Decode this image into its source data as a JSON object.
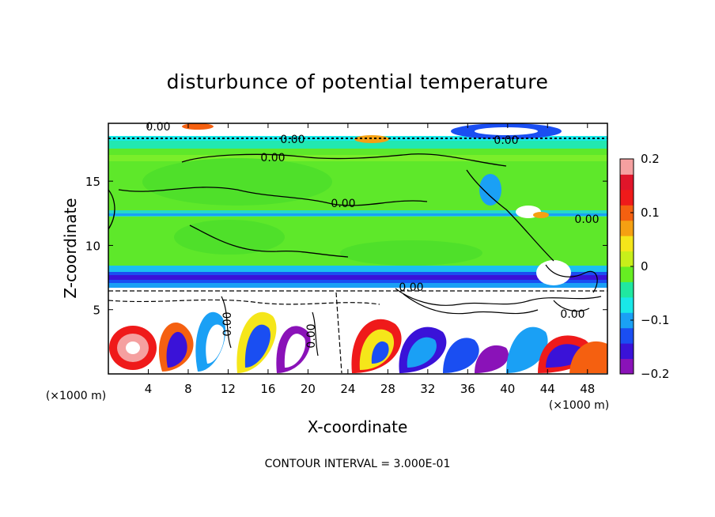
{
  "chart_data": {
    "type": "heatmap",
    "title": "disturbunce of potential temperature",
    "xlabel": "X-coordinate",
    "ylabel": "Z-coordinate",
    "x_unit": "(×1000 m)",
    "y_unit": "(×1000 m)",
    "xlim": [
      0,
      50
    ],
    "ylim": [
      0,
      19.5
    ],
    "x_ticks": [
      4,
      8,
      12,
      16,
      20,
      24,
      28,
      32,
      36,
      40,
      44,
      48
    ],
    "y_ticks": [
      5,
      10,
      15
    ],
    "colorbar": {
      "range": [
        -0.2,
        0.2
      ],
      "ticks": [
        0.2,
        0.1,
        0,
        -0.1,
        -0.2
      ],
      "tick_labels": [
        "0.2",
        "0.1",
        "0",
        "−0.1",
        "−0.2"
      ],
      "colors": [
        "#8a12b8",
        "#3a12d8",
        "#1a4ef2",
        "#1aa0f5",
        "#19e8e8",
        "#20e8a0",
        "#66ee22",
        "#c8ef1a",
        "#f5e61a",
        "#f5a012",
        "#f56010",
        "#ef1a1a",
        "#e0152a",
        "#f5a0a0"
      ]
    },
    "contour_labels": [
      "0.00",
      "0.00",
      "0.00",
      "0.00",
      "0.00",
      "0.00",
      "0.00",
      "0.00",
      "0.00",
      "0.00"
    ],
    "note": "CONTOUR INTERVAL = 3.000E-01"
  }
}
